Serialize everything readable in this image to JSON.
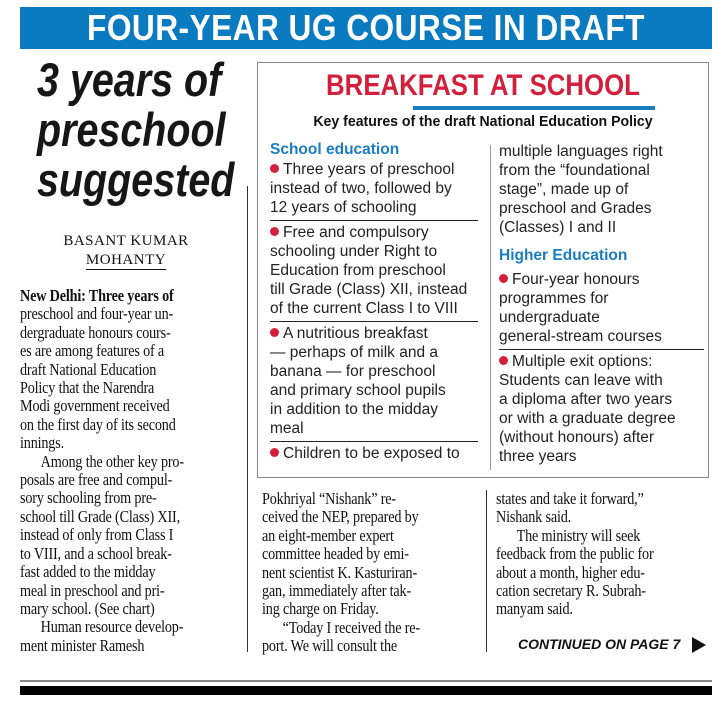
{
  "banner": "FOUR-YEAR UG COURSE IN DRAFT",
  "headline": [
    "3 years of",
    "preschool",
    "suggested"
  ],
  "byline": [
    "BASANT KUMAR",
    "MOHANTY"
  ],
  "story_col1": [
    "New Delhi: Three years of",
    "preschool and four-year un-",
    "dergraduate honours cours-",
    "es are among features of a",
    "draft National Education",
    "Policy that the Narendra",
    "Modi government received",
    "on the first day of its second",
    "innings.",
    "Among the other key pro-",
    "posals are free and compul-",
    "sory schooling from pre-",
    "school till Grade (Class) XII,",
    "instead of only from Class I",
    "to VIII, and a school break-",
    "fast added to the midday",
    "meal in preschool and pri-",
    "mary school. (See chart)",
    "Human resource develop-",
    "ment minister Ramesh"
  ],
  "story_col2": [
    "Pokhriyal “Nishank” re-",
    "ceived the NEP, prepared by",
    "an eight-member expert",
    "committee headed by emi-",
    "nent scientist K. Kasturiran-",
    "gan, immediately after tak-",
    "ing charge on Friday.",
    "“Today I received the re-",
    "port. We will consult the"
  ],
  "story_col3": [
    "states and take it forward,”",
    "Nishank said.",
    "The ministry will seek",
    "feedback from the public for",
    "about a month,  higher edu-",
    "cation secretary R. Subrah-",
    "manyam said."
  ],
  "continued": "CONTINUED ON PAGE 7",
  "box": {
    "title": "BREAKFAST AT SCHOOL",
    "subtitle": "Key features of the draft National Education Policy",
    "school_heading": "School education",
    "school_items": [
      [
        "Three years of preschool",
        "instead of two, followed by",
        "12 years of schooling"
      ],
      [
        "Free and compulsory",
        "schooling under Right to",
        "Education from preschool",
        "till Grade (Class) XII, instead",
        "of the current Class I to VIII"
      ],
      [
        "A nutritious breakfast",
        "— perhaps of milk and a",
        "banana — for preschool",
        "and primary school pupils",
        "in addition to the midday",
        "meal"
      ],
      [
        "Children to be exposed to"
      ]
    ],
    "school_item_continued": [
      "multiple languages right",
      "from the “foundational",
      "stage”, made up of",
      "preschool and Grades",
      "(Classes) I and II"
    ],
    "higher_heading": "Higher Education",
    "higher_items": [
      [
        "Four-year honours",
        "programmes for",
        "undergraduate",
        "general-stream courses"
      ],
      [
        "Multiple exit options:",
        "Students can leave with",
        "a diploma after two years",
        "or with a graduate degree",
        "(without honours) after",
        "three years"
      ]
    ]
  },
  "colors": {
    "banner": "#0b7bc1",
    "title_red": "#d31f3c",
    "heading_blue": "#1a7dbf"
  }
}
